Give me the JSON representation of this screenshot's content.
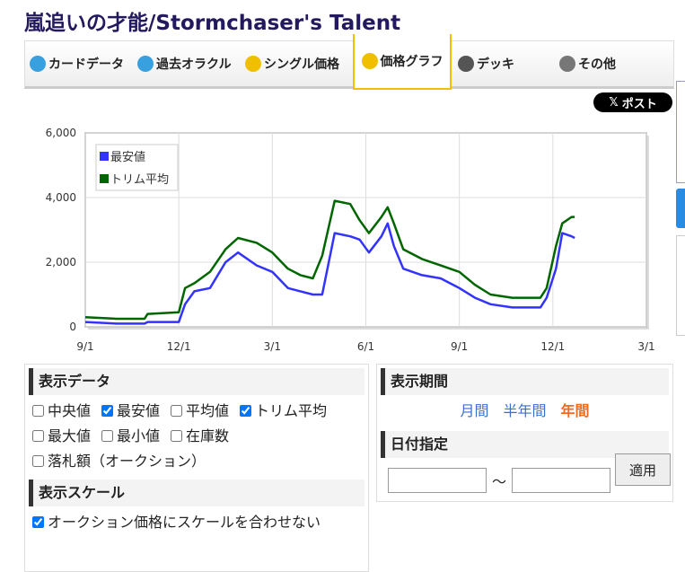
{
  "title": "嵐追いの才能/Stormchaser's Talent",
  "tabs": {
    "items": [
      "カードデータ",
      "過去オラクル",
      "シングル価格",
      "価格グラフ",
      "デッキ",
      "その他"
    ],
    "active": 3
  },
  "post_button": "ポスト",
  "chart_data": {
    "type": "line",
    "x": [
      0,
      1,
      1.9,
      2,
      3,
      3.2,
      3.5,
      4,
      4.5,
      4.9,
      5.5,
      6,
      6.5,
      6.9,
      7.3,
      7.6,
      8,
      8.5,
      8.8,
      9.1,
      9.5,
      9.7,
      9.9,
      10.2,
      10.8,
      11.4,
      12,
      12.5,
      13,
      13.7,
      14.6,
      14.8,
      15.1,
      15.3,
      15.6,
      15.7
    ],
    "series": [
      {
        "name": "最安値",
        "color": "#3333ff",
        "values": [
          150,
          100,
          100,
          150,
          150,
          700,
          1100,
          1200,
          2000,
          2300,
          1900,
          1700,
          1200,
          1100,
          1000,
          1000,
          2900,
          2800,
          2700,
          2300,
          2800,
          3200,
          2500,
          1800,
          1600,
          1500,
          1200,
          900,
          700,
          600,
          600,
          900,
          1800,
          2900,
          2800,
          2750
        ]
      },
      {
        "name": "トリム平均",
        "color": "#006600",
        "values": [
          300,
          250,
          250,
          400,
          450,
          1200,
          1350,
          1700,
          2400,
          2750,
          2600,
          2300,
          1800,
          1600,
          1500,
          2200,
          3900,
          3800,
          3300,
          2900,
          3400,
          3700,
          3200,
          2400,
          2100,
          1900,
          1700,
          1300,
          1000,
          900,
          900,
          1200,
          2500,
          3200,
          3400,
          3400
        ]
      }
    ],
    "xlim": [
      0,
      18
    ],
    "xticks": [
      {
        "value": 0,
        "label": "9/1"
      },
      {
        "value": 3,
        "label": "12/1"
      },
      {
        "value": 6,
        "label": "3/1"
      },
      {
        "value": 9,
        "label": "6/1"
      },
      {
        "value": 12,
        "label": "9/1"
      },
      {
        "value": 15,
        "label": "12/1"
      },
      {
        "value": 18,
        "label": "3/1"
      }
    ],
    "ylim": [
      0,
      6000
    ],
    "yticks": [
      0,
      {
        "value": 2000,
        "label": "2,000"
      },
      {
        "value": 4000,
        "label": "4,000"
      },
      {
        "value": 6000,
        "label": "6,000"
      }
    ],
    "grid": true,
    "legend": "upper-left"
  },
  "display_data": {
    "heading": "表示データ",
    "options": [
      {
        "label": "中央値",
        "checked": false
      },
      {
        "label": "最安値",
        "checked": true
      },
      {
        "label": "平均値",
        "checked": false
      },
      {
        "label": "トリム平均",
        "checked": true
      },
      {
        "label": "最大値",
        "checked": false
      },
      {
        "label": "最小値",
        "checked": false
      },
      {
        "label": "在庫数",
        "checked": false
      },
      {
        "label": "落札額（オークション）",
        "checked": false
      }
    ]
  },
  "display_scale": {
    "heading": "表示スケール",
    "options": [
      {
        "label": "オークション価格にスケールを合わせない",
        "checked": true
      }
    ]
  },
  "display_period": {
    "heading": "表示期間",
    "options": [
      "月間",
      "半年間",
      "年間"
    ],
    "active": 2
  },
  "date_range": {
    "heading": "日付指定",
    "separator": "〜",
    "button": "適用"
  }
}
